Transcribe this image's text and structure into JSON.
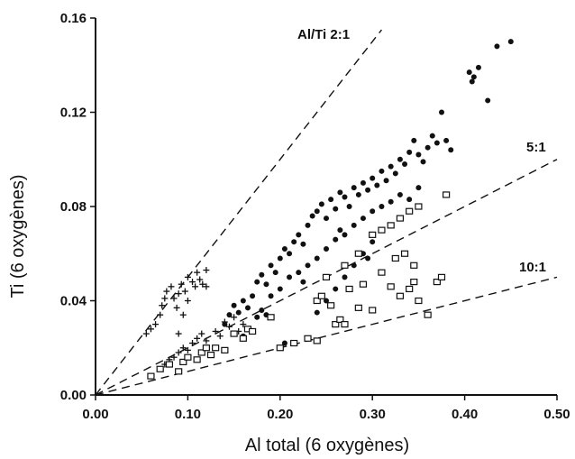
{
  "chart_data": {
    "type": "scatter",
    "xlabel": "Al total (6 oxygènes)",
    "ylabel": "Ti (6 oxygènes)",
    "xlim": [
      0,
      0.5
    ],
    "ylim": [
      0,
      0.16
    ],
    "x_ticks": [
      "0.00",
      "0.10",
      "0.20",
      "0.30",
      "0.40",
      "0.50"
    ],
    "y_ticks": [
      "0.00",
      "0.04",
      "0.08",
      "0.12",
      "0.16"
    ],
    "grid": false,
    "reference_lines": [
      {
        "label": "Al/Ti  2:1",
        "slope": 0.5,
        "x_end": 0.31
      },
      {
        "label": "5:1",
        "slope": 0.2,
        "x_end": 0.5
      },
      {
        "label": "10:1",
        "slope": 0.1,
        "x_end": 0.5
      }
    ],
    "series": [
      {
        "marker": "plus",
        "points": [
          [
            0.055,
            0.026
          ],
          [
            0.06,
            0.028
          ],
          [
            0.065,
            0.03
          ],
          [
            0.07,
            0.034
          ],
          [
            0.072,
            0.038
          ],
          [
            0.075,
            0.041
          ],
          [
            0.077,
            0.044
          ],
          [
            0.082,
            0.046
          ],
          [
            0.085,
            0.041
          ],
          [
            0.088,
            0.037
          ],
          [
            0.09,
            0.043
          ],
          [
            0.093,
            0.047
          ],
          [
            0.097,
            0.044
          ],
          [
            0.1,
            0.05
          ],
          [
            0.105,
            0.048
          ],
          [
            0.108,
            0.046
          ],
          [
            0.11,
            0.052
          ],
          [
            0.113,
            0.049
          ],
          [
            0.116,
            0.047
          ],
          [
            0.12,
            0.053
          ],
          [
            0.095,
            0.034
          ],
          [
            0.09,
            0.026
          ],
          [
            0.1,
            0.04
          ],
          [
            0.12,
            0.046
          ],
          [
            0.075,
            0.013
          ],
          [
            0.08,
            0.015
          ],
          [
            0.085,
            0.016
          ],
          [
            0.09,
            0.018
          ],
          [
            0.095,
            0.02
          ],
          [
            0.1,
            0.019
          ],
          [
            0.105,
            0.022
          ],
          [
            0.11,
            0.024
          ],
          [
            0.115,
            0.026
          ],
          [
            0.12,
            0.023
          ],
          [
            0.13,
            0.027
          ],
          [
            0.135,
            0.025
          ],
          [
            0.14,
            0.031
          ],
          [
            0.145,
            0.029
          ],
          [
            0.15,
            0.033
          ],
          [
            0.155,
            0.027
          ],
          [
            0.16,
            0.03
          ]
        ]
      },
      {
        "marker": "filled-circle",
        "points": [
          [
            0.14,
            0.03
          ],
          [
            0.145,
            0.034
          ],
          [
            0.15,
            0.038
          ],
          [
            0.155,
            0.035
          ],
          [
            0.16,
            0.04
          ],
          [
            0.165,
            0.037
          ],
          [
            0.17,
            0.042
          ],
          [
            0.175,
            0.048
          ],
          [
            0.18,
            0.051
          ],
          [
            0.185,
            0.047
          ],
          [
            0.19,
            0.055
          ],
          [
            0.195,
            0.052
          ],
          [
            0.2,
            0.058
          ],
          [
            0.205,
            0.062
          ],
          [
            0.21,
            0.06
          ],
          [
            0.215,
            0.065
          ],
          [
            0.22,
            0.068
          ],
          [
            0.225,
            0.064
          ],
          [
            0.23,
            0.072
          ],
          [
            0.235,
            0.076
          ],
          [
            0.24,
            0.078
          ],
          [
            0.245,
            0.081
          ],
          [
            0.25,
            0.075
          ],
          [
            0.255,
            0.083
          ],
          [
            0.26,
            0.079
          ],
          [
            0.265,
            0.086
          ],
          [
            0.27,
            0.084
          ],
          [
            0.275,
            0.08
          ],
          [
            0.28,
            0.088
          ],
          [
            0.285,
            0.085
          ],
          [
            0.29,
            0.09
          ],
          [
            0.295,
            0.087
          ],
          [
            0.3,
            0.092
          ],
          [
            0.305,
            0.089
          ],
          [
            0.31,
            0.095
          ],
          [
            0.315,
            0.091
          ],
          [
            0.32,
            0.097
          ],
          [
            0.325,
            0.094
          ],
          [
            0.33,
            0.1
          ],
          [
            0.335,
            0.098
          ],
          [
            0.34,
            0.103
          ],
          [
            0.345,
            0.108
          ],
          [
            0.35,
            0.102
          ],
          [
            0.355,
            0.099
          ],
          [
            0.36,
            0.105
          ],
          [
            0.365,
            0.11
          ],
          [
            0.37,
            0.107
          ],
          [
            0.375,
            0.12
          ],
          [
            0.38,
            0.108
          ],
          [
            0.385,
            0.104
          ],
          [
            0.16,
            0.025
          ],
          [
            0.165,
            0.028
          ],
          [
            0.175,
            0.033
          ],
          [
            0.18,
            0.036
          ],
          [
            0.185,
            0.034
          ],
          [
            0.19,
            0.042
          ],
          [
            0.2,
            0.045
          ],
          [
            0.21,
            0.05
          ],
          [
            0.22,
            0.052
          ],
          [
            0.225,
            0.048
          ],
          [
            0.23,
            0.055
          ],
          [
            0.24,
            0.058
          ],
          [
            0.25,
            0.062
          ],
          [
            0.26,
            0.066
          ],
          [
            0.265,
            0.07
          ],
          [
            0.27,
            0.068
          ],
          [
            0.28,
            0.072
          ],
          [
            0.29,
            0.075
          ],
          [
            0.3,
            0.078
          ],
          [
            0.31,
            0.08
          ],
          [
            0.32,
            0.082
          ],
          [
            0.33,
            0.085
          ],
          [
            0.34,
            0.083
          ],
          [
            0.35,
            0.088
          ],
          [
            0.2,
            0.02
          ],
          [
            0.205,
            0.022
          ],
          [
            0.24,
            0.035
          ],
          [
            0.25,
            0.04
          ],
          [
            0.26,
            0.045
          ],
          [
            0.27,
            0.05
          ],
          [
            0.28,
            0.055
          ],
          [
            0.29,
            0.06
          ],
          [
            0.295,
            0.058
          ],
          [
            0.3,
            0.065
          ],
          [
            0.405,
            0.137
          ],
          [
            0.408,
            0.133
          ],
          [
            0.41,
            0.135
          ],
          [
            0.415,
            0.139
          ],
          [
            0.425,
            0.125
          ],
          [
            0.435,
            0.148
          ],
          [
            0.45,
            0.15
          ]
        ]
      },
      {
        "marker": "open-square",
        "points": [
          [
            0.06,
            0.008
          ],
          [
            0.07,
            0.011
          ],
          [
            0.08,
            0.013
          ],
          [
            0.09,
            0.01
          ],
          [
            0.095,
            0.014
          ],
          [
            0.1,
            0.016
          ],
          [
            0.11,
            0.015
          ],
          [
            0.115,
            0.018
          ],
          [
            0.12,
            0.02
          ],
          [
            0.125,
            0.017
          ],
          [
            0.13,
            0.02
          ],
          [
            0.14,
            0.019
          ],
          [
            0.15,
            0.026
          ],
          [
            0.16,
            0.024
          ],
          [
            0.165,
            0.028
          ],
          [
            0.17,
            0.027
          ],
          [
            0.19,
            0.033
          ],
          [
            0.2,
            0.02
          ],
          [
            0.215,
            0.022
          ],
          [
            0.23,
            0.024
          ],
          [
            0.24,
            0.023
          ],
          [
            0.26,
            0.03
          ],
          [
            0.265,
            0.032
          ],
          [
            0.27,
            0.03
          ],
          [
            0.285,
            0.037
          ],
          [
            0.3,
            0.036
          ],
          [
            0.32,
            0.046
          ],
          [
            0.33,
            0.042
          ],
          [
            0.34,
            0.045
          ],
          [
            0.345,
            0.048
          ],
          [
            0.35,
            0.04
          ],
          [
            0.36,
            0.034
          ],
          [
            0.37,
            0.048
          ],
          [
            0.375,
            0.05
          ],
          [
            0.24,
            0.04
          ],
          [
            0.245,
            0.042
          ],
          [
            0.255,
            0.038
          ],
          [
            0.275,
            0.045
          ],
          [
            0.29,
            0.047
          ],
          [
            0.31,
            0.052
          ],
          [
            0.325,
            0.058
          ],
          [
            0.335,
            0.06
          ],
          [
            0.345,
            0.055
          ],
          [
            0.25,
            0.05
          ],
          [
            0.27,
            0.055
          ],
          [
            0.285,
            0.06
          ],
          [
            0.3,
            0.068
          ],
          [
            0.31,
            0.07
          ],
          [
            0.32,
            0.072
          ],
          [
            0.33,
            0.075
          ],
          [
            0.34,
            0.078
          ],
          [
            0.35,
            0.08
          ],
          [
            0.38,
            0.085
          ]
        ]
      }
    ]
  }
}
